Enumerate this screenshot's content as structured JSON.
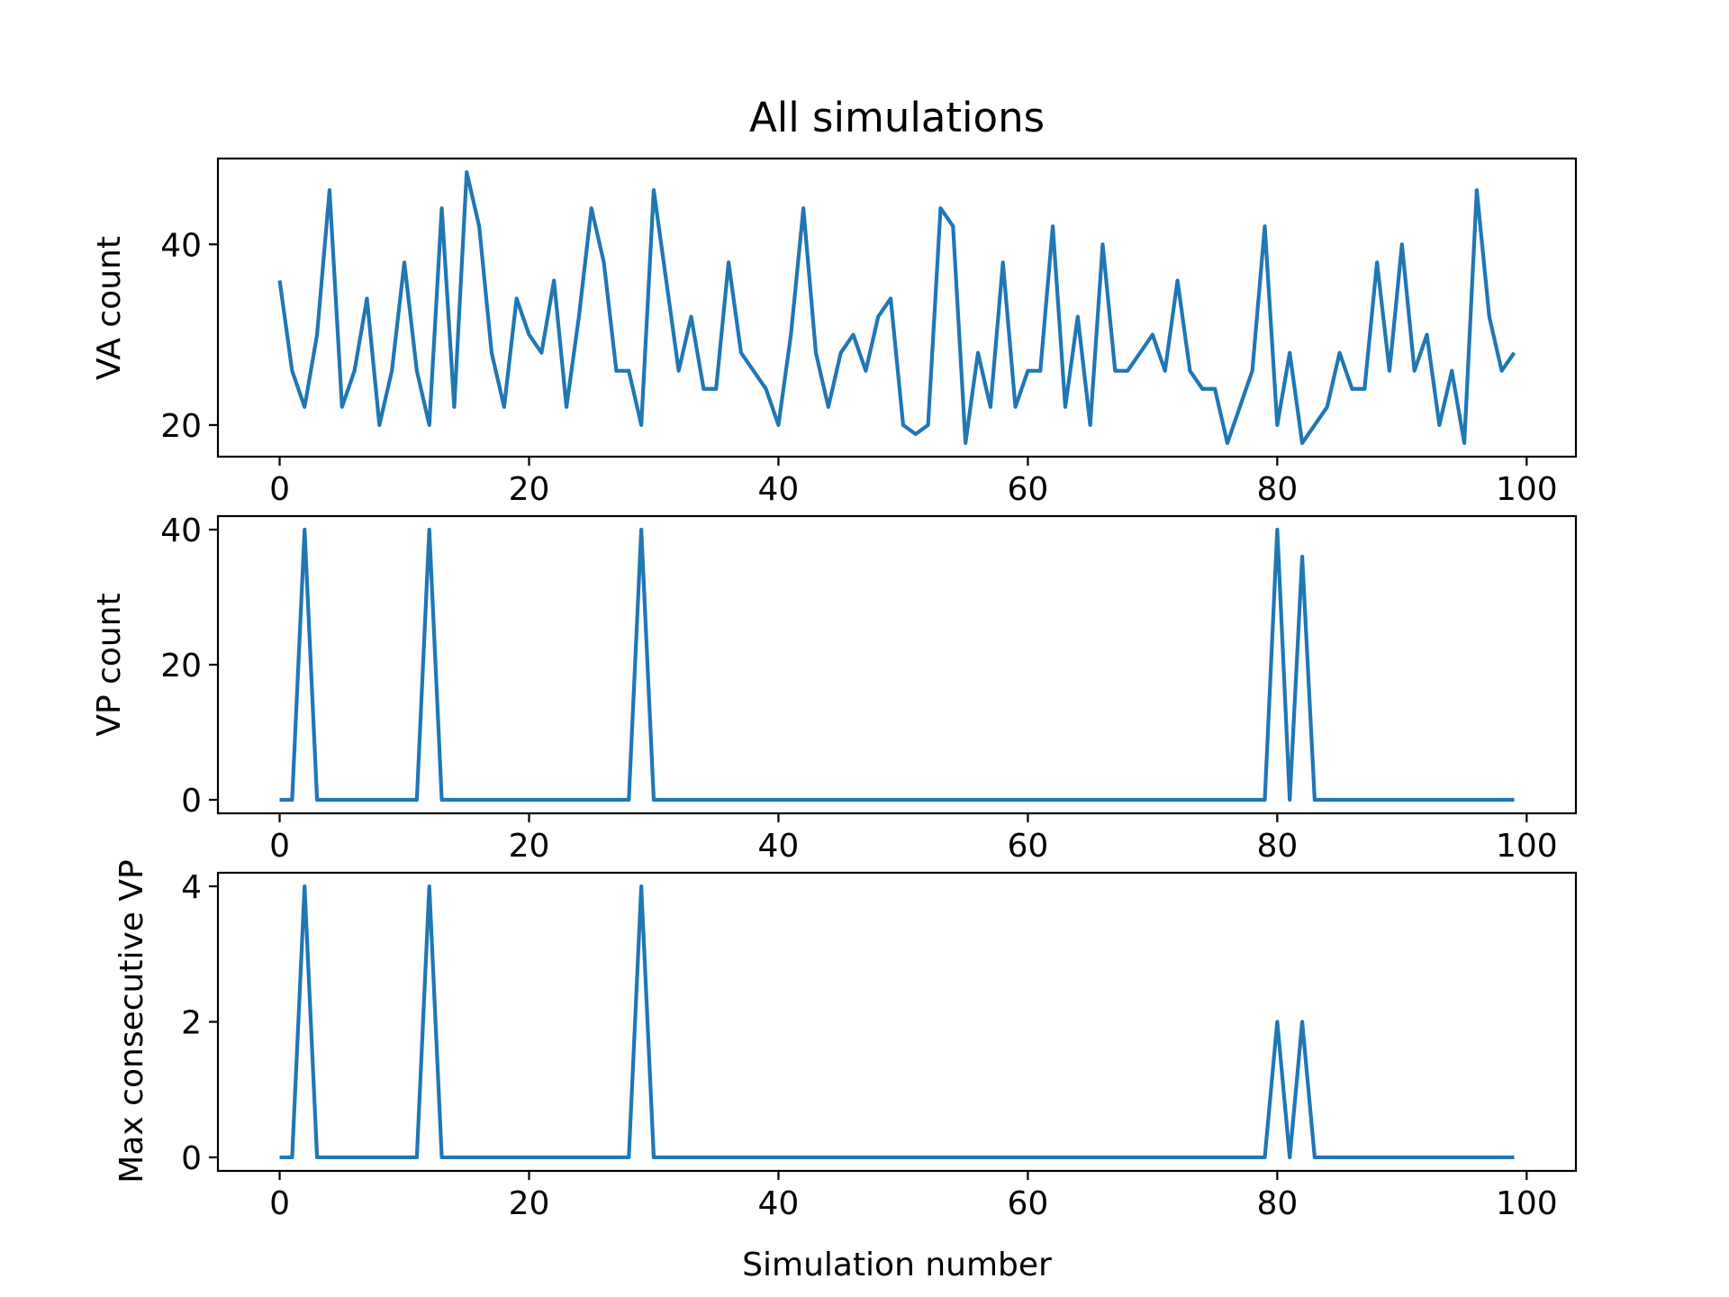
{
  "colors": {
    "series": "#1f77b4",
    "axis": "#000000",
    "background": "#ffffff"
  },
  "chart_data": [
    {
      "type": "line",
      "title": "All simulations",
      "xlabel": "",
      "ylabel": "VA count",
      "xlim": [
        -4.95,
        103.95
      ],
      "ylim": [
        16.5,
        49.5
      ],
      "xticks": [
        0,
        20,
        40,
        60,
        80,
        100
      ],
      "yticks": [
        20,
        40
      ],
      "grid": false,
      "series": [
        {
          "values": [
            36,
            26,
            22,
            30,
            46,
            22,
            26,
            34,
            20,
            26,
            38,
            26,
            20,
            44,
            22,
            48,
            42,
            28,
            22,
            34,
            30,
            28,
            36,
            22,
            32,
            44,
            38,
            26,
            26,
            20,
            46,
            36,
            26,
            32,
            24,
            24,
            38,
            28,
            26,
            24,
            20,
            30,
            44,
            28,
            22,
            28,
            30,
            26,
            32,
            34,
            20,
            19,
            20,
            44,
            42,
            18,
            28,
            22,
            38,
            22,
            26,
            26,
            42,
            22,
            32,
            20,
            40,
            26,
            26,
            28,
            30,
            26,
            36,
            26,
            24,
            24,
            18,
            22,
            26,
            42,
            20,
            28,
            18,
            20,
            22,
            28,
            24,
            24,
            38,
            26,
            40,
            26,
            30,
            20,
            26,
            18,
            46,
            32,
            26,
            28
          ]
        }
      ]
    },
    {
      "type": "line",
      "title": "",
      "xlabel": "",
      "ylabel": "VP count",
      "xlim": [
        -4.95,
        103.95
      ],
      "ylim": [
        -2,
        42
      ],
      "xticks": [
        0,
        20,
        40,
        60,
        80,
        100
      ],
      "yticks": [
        0,
        20,
        40
      ],
      "grid": false,
      "series": [
        {
          "values": [
            0,
            0,
            40,
            0,
            0,
            0,
            0,
            0,
            0,
            0,
            0,
            0,
            40,
            0,
            0,
            0,
            0,
            0,
            0,
            0,
            0,
            0,
            0,
            0,
            0,
            0,
            0,
            0,
            0,
            40,
            0,
            0,
            0,
            0,
            0,
            0,
            0,
            0,
            0,
            0,
            0,
            0,
            0,
            0,
            0,
            0,
            0,
            0,
            0,
            0,
            0,
            0,
            0,
            0,
            0,
            0,
            0,
            0,
            0,
            0,
            0,
            0,
            0,
            0,
            0,
            0,
            0,
            0,
            0,
            0,
            0,
            0,
            0,
            0,
            0,
            0,
            0,
            0,
            0,
            0,
            40,
            0,
            36,
            0,
            0,
            0,
            0,
            0,
            0,
            0,
            0,
            0,
            0,
            0,
            0,
            0,
            0,
            0,
            0,
            0
          ]
        }
      ]
    },
    {
      "type": "line",
      "title": "",
      "xlabel": "Simulation number",
      "ylabel": "Max consecutive VP",
      "xlim": [
        -4.95,
        103.95
      ],
      "ylim": [
        -0.2,
        4.2
      ],
      "xticks": [
        0,
        20,
        40,
        60,
        80,
        100
      ],
      "yticks": [
        0,
        2,
        4
      ],
      "grid": false,
      "series": [
        {
          "values": [
            0,
            0,
            4,
            0,
            0,
            0,
            0,
            0,
            0,
            0,
            0,
            0,
            4,
            0,
            0,
            0,
            0,
            0,
            0,
            0,
            0,
            0,
            0,
            0,
            0,
            0,
            0,
            0,
            0,
            4,
            0,
            0,
            0,
            0,
            0,
            0,
            0,
            0,
            0,
            0,
            0,
            0,
            0,
            0,
            0,
            0,
            0,
            0,
            0,
            0,
            0,
            0,
            0,
            0,
            0,
            0,
            0,
            0,
            0,
            0,
            0,
            0,
            0,
            0,
            0,
            0,
            0,
            0,
            0,
            0,
            0,
            0,
            0,
            0,
            0,
            0,
            0,
            0,
            0,
            0,
            2,
            0,
            2,
            0,
            0,
            0,
            0,
            0,
            0,
            0,
            0,
            0,
            0,
            0,
            0,
            0,
            0,
            0,
            0,
            0
          ]
        }
      ]
    }
  ]
}
